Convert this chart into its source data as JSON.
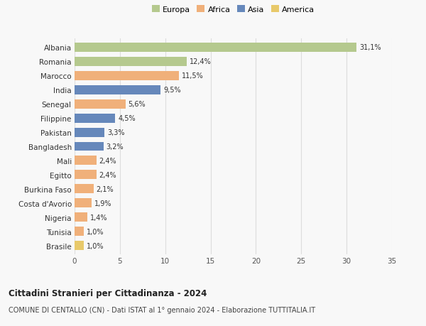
{
  "categories": [
    "Albania",
    "Romania",
    "Marocco",
    "India",
    "Senegal",
    "Filippine",
    "Pakistan",
    "Bangladesh",
    "Mali",
    "Egitto",
    "Burkina Faso",
    "Costa d'Avorio",
    "Nigeria",
    "Tunisia",
    "Brasile"
  ],
  "values": [
    31.1,
    12.4,
    11.5,
    9.5,
    5.6,
    4.5,
    3.3,
    3.2,
    2.4,
    2.4,
    2.1,
    1.9,
    1.4,
    1.0,
    1.0
  ],
  "labels": [
    "31,1%",
    "12,4%",
    "11,5%",
    "9,5%",
    "5,6%",
    "4,5%",
    "3,3%",
    "3,2%",
    "2,4%",
    "2,4%",
    "2,1%",
    "1,9%",
    "1,4%",
    "1,0%",
    "1,0%"
  ],
  "colors": [
    "#b5c98e",
    "#b5c98e",
    "#f0b07a",
    "#6688bb",
    "#f0b07a",
    "#6688bb",
    "#6688bb",
    "#6688bb",
    "#f0b07a",
    "#f0b07a",
    "#f0b07a",
    "#f0b07a",
    "#f0b07a",
    "#f0b07a",
    "#e8c96a"
  ],
  "legend_labels": [
    "Europa",
    "Africa",
    "Asia",
    "America"
  ],
  "legend_colors": [
    "#b5c98e",
    "#f0b07a",
    "#6688bb",
    "#e8c96a"
  ],
  "title": "Cittadini Stranieri per Cittadinanza - 2024",
  "subtitle": "COMUNE DI CENTALLO (CN) - Dati ISTAT al 1° gennaio 2024 - Elaborazione TUTTITALIA.IT",
  "xlim": [
    0,
    35
  ],
  "xticks": [
    0,
    5,
    10,
    15,
    20,
    25,
    30,
    35
  ],
  "bg_color": "#f8f8f8",
  "grid_color": "#dddddd"
}
